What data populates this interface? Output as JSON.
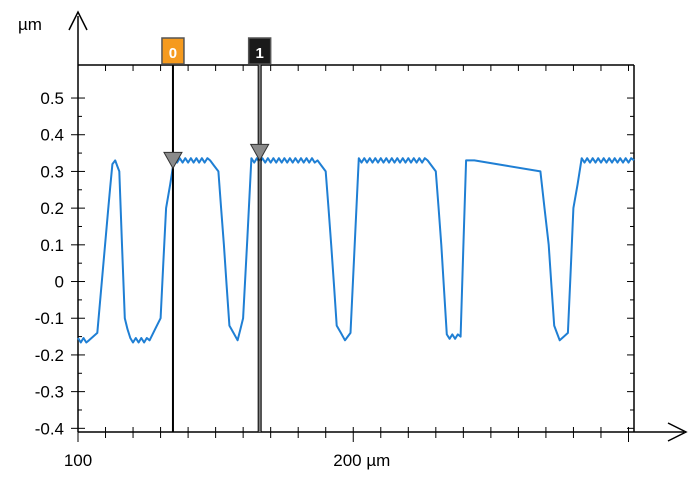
{
  "chart_data": {
    "type": "line",
    "xlabel": "µm",
    "ylabel": "µm",
    "xlim": [
      100,
      302
    ],
    "ylim": [
      -0.41,
      0.59
    ],
    "x_ticks": [
      100,
      200
    ],
    "x_tick_labels": [
      "100",
      "200 µm"
    ],
    "y_ticks": [
      0.5,
      0.4,
      0.3,
      0.2,
      0.1,
      0,
      -0.1,
      -0.2,
      -0.3,
      -0.4
    ],
    "y_tick_labels": [
      "0.5",
      "0.4",
      "0.3",
      "0.2",
      "0.1",
      "0",
      "-0.1",
      "-0.2",
      "-0.3",
      "-0.4"
    ],
    "grid": false,
    "series": [
      {
        "color": "#1f7fd4",
        "x": [
          100,
          104,
          107,
          111,
          112.5,
          113.5,
          115,
          117,
          119,
          126,
          130,
          132,
          135,
          148,
          151,
          153,
          155,
          158,
          160,
          163,
          187,
          190,
          192,
          194,
          197,
          199,
          202,
          227,
          230,
          232,
          234,
          239,
          241,
          244,
          268,
          271,
          273,
          275,
          278,
          280,
          283,
          302
        ],
        "y": [
          -0.16,
          -0.16,
          -0.14,
          0.2,
          0.32,
          0.33,
          0.3,
          -0.1,
          -0.16,
          -0.16,
          -0.1,
          0.2,
          0.33,
          0.33,
          0.3,
          0.1,
          -0.12,
          -0.16,
          -0.1,
          0.33,
          0.33,
          0.3,
          0.1,
          -0.12,
          -0.16,
          -0.14,
          0.33,
          0.33,
          0.3,
          0.1,
          -0.15,
          -0.15,
          0.33,
          0.33,
          0.3,
          0.1,
          -0.12,
          -0.16,
          -0.14,
          0.2,
          0.33,
          0.33
        ]
      }
    ],
    "cursors": [
      {
        "label": "0",
        "x": 134.5,
        "color": "#f59a1e",
        "text_color": "#ffffff",
        "line": "#000000"
      },
      {
        "label": "1",
        "x": 166,
        "color": "#1a1a1a",
        "text_color": "#ffffff",
        "line": "#808080"
      }
    ]
  }
}
